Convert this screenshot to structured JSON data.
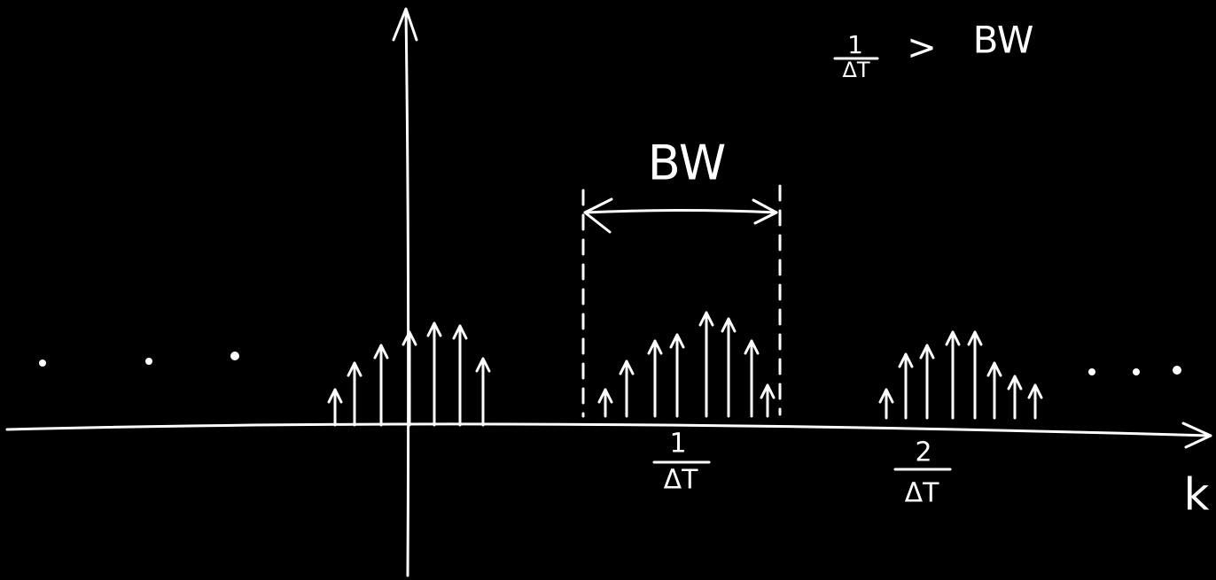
{
  "condition": {
    "numerator": "1",
    "denominator": "ΔT",
    "relation": ">",
    "rhs": "BW"
  },
  "bandwidth_label": "BW",
  "ticks": [
    {
      "numerator": "1",
      "denominator": "ΔT"
    },
    {
      "numerator": "2",
      "denominator": "ΔT"
    }
  ],
  "axis_label": "k"
}
